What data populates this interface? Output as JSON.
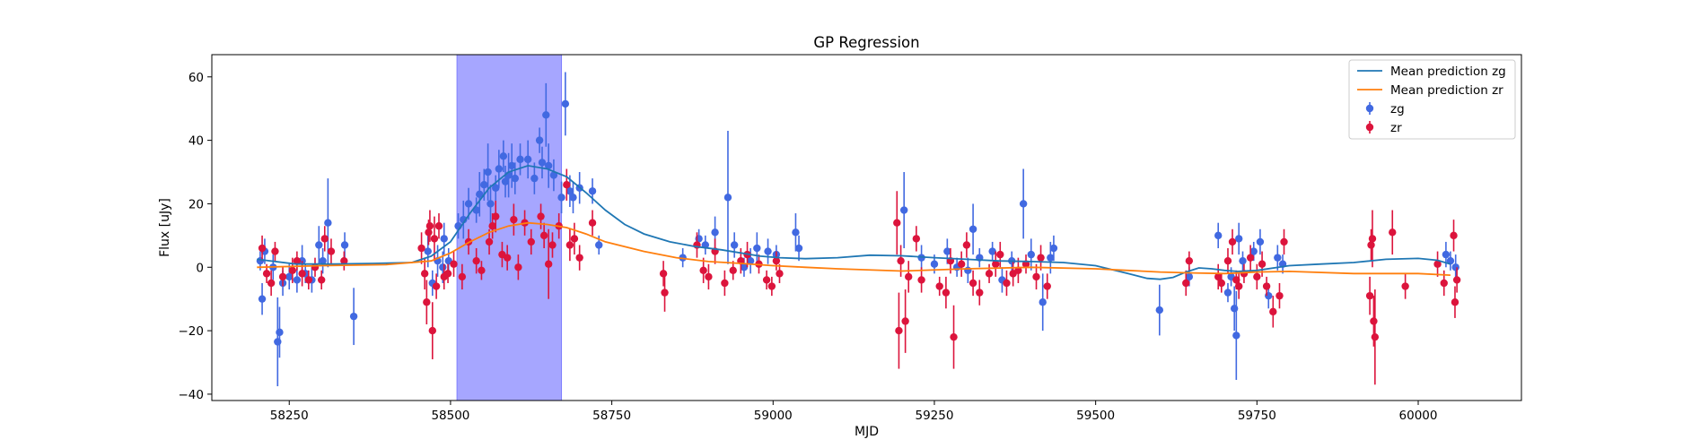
{
  "chart_data": {
    "type": "scatter",
    "title": "GP Regression",
    "xlabel": "MJD",
    "ylabel": "Flux [uJy]",
    "xlim": [
      58130,
      60160
    ],
    "ylim": [
      -42,
      67
    ],
    "xticks": [
      58250,
      58500,
      58750,
      59000,
      59250,
      59500,
      59750,
      60000
    ],
    "yticks": [
      -40,
      -20,
      0,
      20,
      40,
      60
    ],
    "legend_position": "upper right",
    "highlight_span": {
      "x0": 58510,
      "x1": 58672,
      "color": "#a6a6ff",
      "edge_color": "#7f7fff"
    },
    "lines": [
      {
        "name": "Mean prediction zg",
        "color": "#1f77b4",
        "x": [
          58200,
          58260,
          58320,
          58380,
          58440,
          58470,
          58500,
          58530,
          58560,
          58590,
          58620,
          58650,
          58680,
          58710,
          58740,
          58770,
          58800,
          58840,
          58880,
          58920,
          58950,
          58980,
          59010,
          59050,
          59100,
          59150,
          59200,
          59250,
          59300,
          59350,
          59400,
          59450,
          59500,
          59550,
          59580,
          59600,
          59620,
          59640,
          59660,
          59680,
          59700,
          59720,
          59750,
          59800,
          59850,
          59900,
          59950,
          60000,
          60030,
          60050
        ],
        "y": [
          2.5,
          1.0,
          1.0,
          1.2,
          1.5,
          3.5,
          8.0,
          17.0,
          25.0,
          30.0,
          32.0,
          31.0,
          28.5,
          23.5,
          18.0,
          13.5,
          10.5,
          8.0,
          6.5,
          5.5,
          4.5,
          3.5,
          3.0,
          2.7,
          3.0,
          3.8,
          3.6,
          3.0,
          2.5,
          2.0,
          1.8,
          1.5,
          0.5,
          -2.0,
          -3.5,
          -3.8,
          -3.2,
          -1.5,
          -0.2,
          -0.5,
          -1.0,
          -1.3,
          -1.0,
          0.5,
          1.0,
          1.5,
          2.5,
          2.8,
          2.2,
          1.0
        ]
      },
      {
        "name": "Mean prediction zr",
        "color": "#ff7f0e",
        "x": [
          58200,
          58300,
          58400,
          58470,
          58500,
          58530,
          58560,
          58590,
          58620,
          58650,
          58680,
          58710,
          58740,
          58800,
          58850,
          58900,
          58950,
          59000,
          59050,
          59100,
          59200,
          59300,
          59400,
          59500,
          59550,
          59600,
          59650,
          59700,
          59750,
          59800,
          59900,
          60000,
          60050
        ],
        "y": [
          0.0,
          0.5,
          0.8,
          2.0,
          4.5,
          8.0,
          11.0,
          13.0,
          14.0,
          13.5,
          12.5,
          10.5,
          8.0,
          5.0,
          3.0,
          1.8,
          1.2,
          0.5,
          0.0,
          -0.5,
          -1.2,
          -0.5,
          0.0,
          -0.5,
          -1.0,
          -1.5,
          -1.8,
          -2.0,
          -1.5,
          -1.3,
          -2.0,
          -2.0,
          -2.5
        ]
      }
    ],
    "series": [
      {
        "name": "zg",
        "color": "#4169e1",
        "points": [
          [
            58205,
            2,
            3
          ],
          [
            58208,
            -10,
            5
          ],
          [
            58212,
            5,
            4
          ],
          [
            58225,
            0,
            4
          ],
          [
            58232,
            -23.5,
            14
          ],
          [
            58235,
            -20.5,
            8
          ],
          [
            58240,
            -5,
            4
          ],
          [
            58250,
            -3,
            4
          ],
          [
            58262,
            -4,
            4
          ],
          [
            58270,
            2,
            5
          ],
          [
            58275,
            -2,
            3
          ],
          [
            58285,
            -4,
            4
          ],
          [
            58296,
            7,
            6
          ],
          [
            58302,
            2,
            4
          ],
          [
            58310,
            14,
            14
          ],
          [
            58336,
            7,
            4
          ],
          [
            58350,
            -15.5,
            9
          ],
          [
            58465,
            5,
            5
          ],
          [
            58472,
            -5,
            4
          ],
          [
            58480,
            2,
            5
          ],
          [
            58488,
            0,
            5
          ],
          [
            58490,
            9,
            5
          ],
          [
            58497,
            2,
            4
          ],
          [
            58512,
            13,
            4
          ],
          [
            58520,
            15,
            6
          ],
          [
            58528,
            20,
            5
          ],
          [
            58540,
            18,
            4
          ],
          [
            58545,
            23,
            7
          ],
          [
            58552,
            26,
            5
          ],
          [
            58558,
            30,
            9
          ],
          [
            58562,
            20,
            6
          ],
          [
            58570,
            25,
            4
          ],
          [
            58575,
            31,
            6
          ],
          [
            58582,
            35,
            5
          ],
          [
            58585,
            27,
            5
          ],
          [
            58590,
            29,
            7
          ],
          [
            58595,
            32,
            7
          ],
          [
            58600,
            28,
            5
          ],
          [
            58608,
            34,
            5
          ],
          [
            58620,
            34,
            6
          ],
          [
            58630,
            28,
            5
          ],
          [
            58638,
            40,
            4
          ],
          [
            58642,
            33,
            5
          ],
          [
            58648,
            48,
            10
          ],
          [
            58652,
            32,
            7
          ],
          [
            58660,
            29,
            5
          ],
          [
            58672,
            22,
            5
          ],
          [
            58678,
            51.5,
            10
          ],
          [
            58685,
            24,
            5
          ],
          [
            58690,
            22,
            5
          ],
          [
            58700,
            25,
            5
          ],
          [
            58720,
            24,
            4
          ],
          [
            58730,
            7,
            3
          ],
          [
            58860,
            3,
            3
          ],
          [
            58885,
            9,
            3
          ],
          [
            58895,
            7,
            3
          ],
          [
            58910,
            11,
            5
          ],
          [
            58930,
            22,
            21
          ],
          [
            58940,
            7,
            4
          ],
          [
            58955,
            0,
            3
          ],
          [
            58965,
            2,
            4
          ],
          [
            58975,
            6,
            5
          ],
          [
            58992,
            5,
            4
          ],
          [
            59005,
            4,
            3
          ],
          [
            59035,
            11,
            6
          ],
          [
            59040,
            6,
            4
          ],
          [
            59203,
            18,
            12
          ],
          [
            59230,
            3,
            4
          ],
          [
            59250,
            1,
            3
          ],
          [
            59270,
            5,
            4
          ],
          [
            59285,
            0,
            3
          ],
          [
            59302,
            -1,
            4
          ],
          [
            59310,
            12,
            8
          ],
          [
            59320,
            3,
            3
          ],
          [
            59340,
            5,
            3
          ],
          [
            59355,
            -4,
            4
          ],
          [
            59370,
            2,
            3
          ],
          [
            59388,
            20,
            11
          ],
          [
            59400,
            4,
            5
          ],
          [
            59418,
            -11,
            9
          ],
          [
            59430,
            3,
            5
          ],
          [
            59435,
            6,
            4
          ],
          [
            59599,
            -13.5,
            8
          ],
          [
            59645,
            -3,
            3
          ],
          [
            59690,
            10,
            4
          ],
          [
            59705,
            -8,
            3
          ],
          [
            59710,
            -3,
            3
          ],
          [
            59715,
            -13,
            7
          ],
          [
            59718,
            -21.5,
            14
          ],
          [
            59722,
            9,
            5
          ],
          [
            59728,
            2,
            3
          ],
          [
            59745,
            5,
            3
          ],
          [
            59755,
            8,
            4
          ],
          [
            59768,
            -9,
            4
          ],
          [
            59782,
            3,
            4
          ],
          [
            59790,
            1,
            3
          ],
          [
            60043,
            4,
            4
          ],
          [
            60050,
            2,
            3
          ],
          [
            60058,
            0,
            4
          ]
        ]
      },
      {
        "name": "zr",
        "color": "#dc143c",
        "points": [
          [
            58208,
            6,
            4
          ],
          [
            58215,
            -2,
            3
          ],
          [
            58222,
            -5,
            4
          ],
          [
            58228,
            5,
            3
          ],
          [
            58240,
            -3,
            3
          ],
          [
            58255,
            -1,
            4
          ],
          [
            58262,
            2,
            3
          ],
          [
            58270,
            -2,
            4
          ],
          [
            58280,
            -4,
            3
          ],
          [
            58290,
            0,
            3
          ],
          [
            58300,
            -4,
            3
          ],
          [
            58305,
            9,
            4
          ],
          [
            58315,
            5,
            4
          ],
          [
            58335,
            2,
            3
          ],
          [
            58455,
            6,
            5
          ],
          [
            58460,
            -2,
            5
          ],
          [
            58463,
            -11,
            7
          ],
          [
            58466,
            11,
            4
          ],
          [
            58468,
            13,
            5
          ],
          [
            58472,
            -20,
            9
          ],
          [
            58475,
            9,
            7
          ],
          [
            58478,
            -6,
            4
          ],
          [
            58482,
            13,
            4
          ],
          [
            58490,
            -3,
            4
          ],
          [
            58496,
            -2,
            3
          ],
          [
            58505,
            1,
            4
          ],
          [
            58518,
            -3,
            4
          ],
          [
            58528,
            8,
            4
          ],
          [
            58540,
            2,
            4
          ],
          [
            58548,
            -1,
            3
          ],
          [
            58560,
            8,
            4
          ],
          [
            58565,
            13,
            4
          ],
          [
            58570,
            16,
            5
          ],
          [
            58580,
            4,
            4
          ],
          [
            58588,
            3,
            4
          ],
          [
            58598,
            15,
            5
          ],
          [
            58605,
            0,
            4
          ],
          [
            58615,
            14,
            4
          ],
          [
            58625,
            8,
            4
          ],
          [
            58640,
            16,
            4
          ],
          [
            58645,
            10,
            4
          ],
          [
            58652,
            1,
            11
          ],
          [
            58658,
            7,
            4
          ],
          [
            58668,
            13,
            4
          ],
          [
            58680,
            26,
            5
          ],
          [
            58685,
            7,
            5
          ],
          [
            58692,
            9,
            5
          ],
          [
            58700,
            3,
            4
          ],
          [
            58720,
            14,
            4
          ],
          [
            58830,
            -2,
            4
          ],
          [
            58832,
            -8,
            6
          ],
          [
            58882,
            7,
            4
          ],
          [
            58892,
            -1,
            4
          ],
          [
            58900,
            -3,
            4
          ],
          [
            58910,
            5,
            4
          ],
          [
            58925,
            -5,
            4
          ],
          [
            58938,
            -1,
            3
          ],
          [
            58950,
            2,
            4
          ],
          [
            58960,
            4,
            4
          ],
          [
            58978,
            1,
            3
          ],
          [
            58990,
            -4,
            3
          ],
          [
            58998,
            -6,
            3
          ],
          [
            59005,
            2,
            3
          ],
          [
            59010,
            -2,
            3
          ],
          [
            59192,
            14,
            10
          ],
          [
            59195,
            -20,
            12
          ],
          [
            59198,
            2,
            5
          ],
          [
            59205,
            -17,
            10
          ],
          [
            59210,
            -3,
            5
          ],
          [
            59222,
            9,
            4
          ],
          [
            59230,
            -4,
            4
          ],
          [
            59258,
            -6,
            3
          ],
          [
            59268,
            -8,
            5
          ],
          [
            59275,
            2,
            4
          ],
          [
            59280,
            -22,
            10
          ],
          [
            59292,
            1,
            4
          ],
          [
            59300,
            7,
            4
          ],
          [
            59310,
            -5,
            4
          ],
          [
            59320,
            -8,
            4
          ],
          [
            59335,
            -2,
            3
          ],
          [
            59345,
            1,
            4
          ],
          [
            59352,
            4,
            4
          ],
          [
            59362,
            -5,
            4
          ],
          [
            59372,
            -2,
            4
          ],
          [
            59380,
            -1,
            4
          ],
          [
            59392,
            1,
            3
          ],
          [
            59408,
            -3,
            4
          ],
          [
            59415,
            3,
            4
          ],
          [
            59425,
            -6,
            4
          ],
          [
            59640,
            -5,
            4
          ],
          [
            59645,
            2,
            3
          ],
          [
            59690,
            -3,
            4
          ],
          [
            59695,
            -5,
            3
          ],
          [
            59705,
            2,
            4
          ],
          [
            59712,
            8,
            4
          ],
          [
            59718,
            -4,
            3
          ],
          [
            59722,
            -6,
            4
          ],
          [
            59730,
            -2,
            3
          ],
          [
            59740,
            3,
            4
          ],
          [
            59750,
            -3,
            4
          ],
          [
            59758,
            1,
            4
          ],
          [
            59765,
            -6,
            3
          ],
          [
            59775,
            -14,
            5
          ],
          [
            59785,
            -9,
            4
          ],
          [
            59792,
            8,
            4
          ],
          [
            59925,
            -9,
            6
          ],
          [
            59927,
            7,
            5
          ],
          [
            59929,
            9,
            9
          ],
          [
            59931,
            -17,
            8
          ],
          [
            59933,
            -22,
            15
          ],
          [
            59960,
            11,
            7
          ],
          [
            59980,
            -6,
            4
          ],
          [
            60030,
            1,
            4
          ],
          [
            60040,
            -5,
            4
          ],
          [
            60055,
            10,
            5
          ],
          [
            60057,
            -11,
            5
          ],
          [
            60060,
            -4,
            4
          ]
        ]
      }
    ]
  }
}
